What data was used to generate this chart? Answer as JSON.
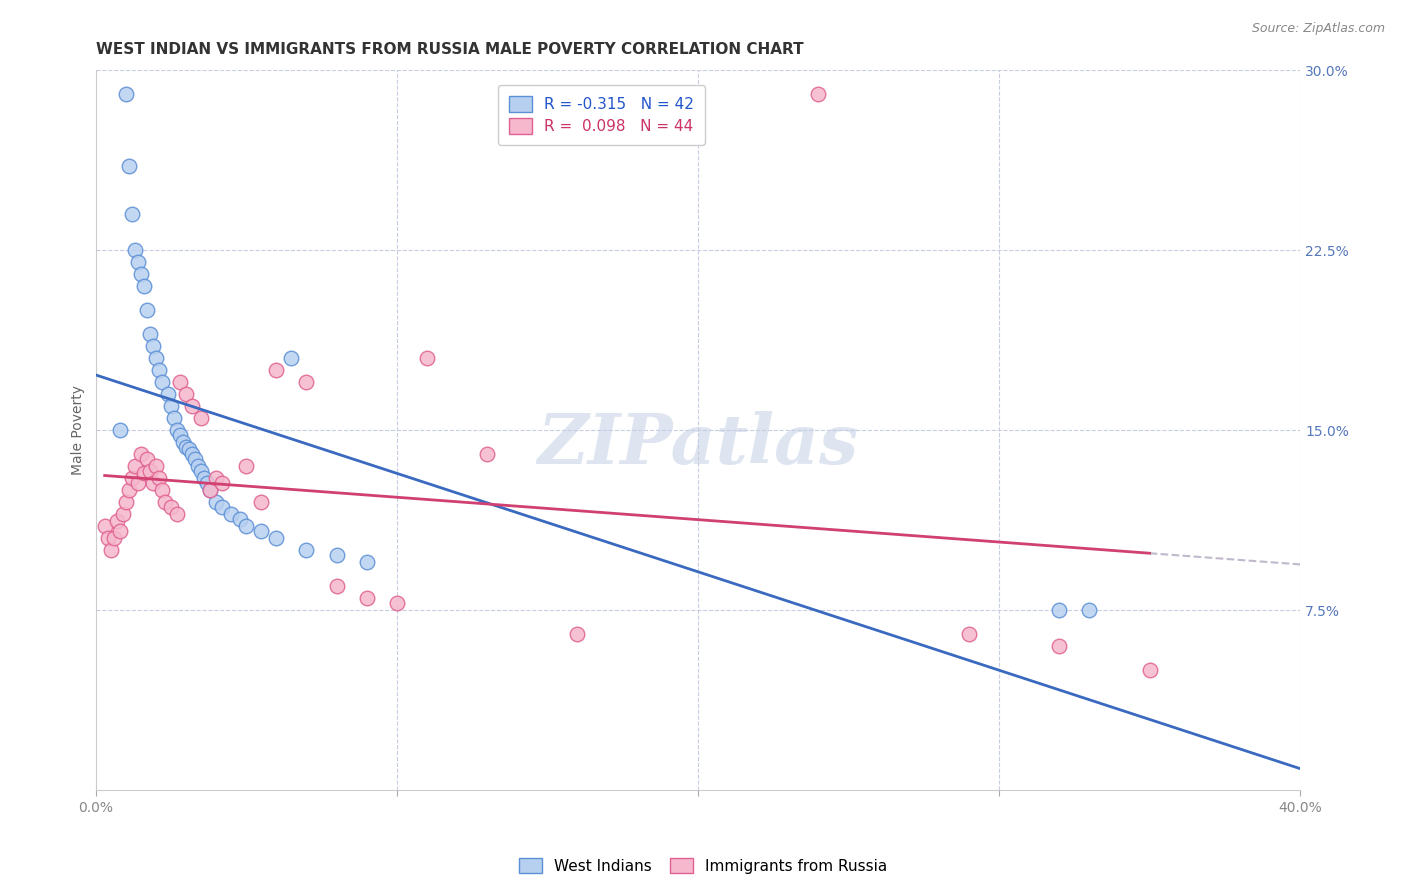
{
  "title": "WEST INDIAN VS IMMIGRANTS FROM RUSSIA MALE POVERTY CORRELATION CHART",
  "source": "Source: ZipAtlas.com",
  "ylabel": "Male Poverty",
  "xlim": [
    0.0,
    0.4
  ],
  "ylim": [
    0.0,
    0.3
  ],
  "yticks_right": [
    0.075,
    0.15,
    0.225,
    0.3
  ],
  "ytick_labels_right": [
    "7.5%",
    "15.0%",
    "22.5%",
    "30.0%"
  ],
  "legend1_label": "R = -0.315   N = 42",
  "legend2_label": "R =  0.098   N = 44",
  "legend1_facecolor": "#b8d0f0",
  "legend2_facecolor": "#f5b8cc",
  "blue_edge": "#5b8fd6",
  "pink_edge": "#e06090",
  "trendline_blue": "#3a6abf",
  "trendline_pink": "#d04070",
  "trendline_dashed": "#c0b8cc",
  "watermark": "ZIPatlas",
  "background_color": "#ffffff",
  "grid_color": "#c8cce0",
  "west_indians_x": [
    0.008,
    0.01,
    0.011,
    0.012,
    0.013,
    0.014,
    0.015,
    0.016,
    0.017,
    0.018,
    0.019,
    0.02,
    0.021,
    0.022,
    0.024,
    0.025,
    0.026,
    0.027,
    0.028,
    0.029,
    0.03,
    0.031,
    0.032,
    0.033,
    0.034,
    0.035,
    0.036,
    0.037,
    0.038,
    0.04,
    0.042,
    0.045,
    0.048,
    0.05,
    0.055,
    0.06,
    0.065,
    0.07,
    0.08,
    0.09,
    0.32,
    0.33
  ],
  "west_indians_y": [
    0.15,
    0.29,
    0.26,
    0.24,
    0.225,
    0.22,
    0.215,
    0.21,
    0.2,
    0.19,
    0.185,
    0.18,
    0.175,
    0.17,
    0.165,
    0.16,
    0.155,
    0.15,
    0.148,
    0.145,
    0.143,
    0.142,
    0.14,
    0.138,
    0.135,
    0.133,
    0.13,
    0.128,
    0.125,
    0.12,
    0.118,
    0.115,
    0.113,
    0.11,
    0.108,
    0.105,
    0.18,
    0.1,
    0.098,
    0.095,
    0.075,
    0.075
  ],
  "russia_x": [
    0.003,
    0.004,
    0.005,
    0.006,
    0.007,
    0.008,
    0.009,
    0.01,
    0.011,
    0.012,
    0.013,
    0.014,
    0.015,
    0.016,
    0.017,
    0.018,
    0.019,
    0.02,
    0.021,
    0.022,
    0.023,
    0.025,
    0.027,
    0.028,
    0.03,
    0.032,
    0.035,
    0.038,
    0.04,
    0.042,
    0.05,
    0.055,
    0.06,
    0.07,
    0.08,
    0.09,
    0.1,
    0.11,
    0.13,
    0.16,
    0.24,
    0.29,
    0.32,
    0.35
  ],
  "russia_y": [
    0.11,
    0.105,
    0.1,
    0.105,
    0.112,
    0.108,
    0.115,
    0.12,
    0.125,
    0.13,
    0.135,
    0.128,
    0.14,
    0.132,
    0.138,
    0.133,
    0.128,
    0.135,
    0.13,
    0.125,
    0.12,
    0.118,
    0.115,
    0.17,
    0.165,
    0.16,
    0.155,
    0.125,
    0.13,
    0.128,
    0.135,
    0.12,
    0.175,
    0.17,
    0.085,
    0.08,
    0.078,
    0.18,
    0.14,
    0.065,
    0.29,
    0.065,
    0.06,
    0.05
  ]
}
